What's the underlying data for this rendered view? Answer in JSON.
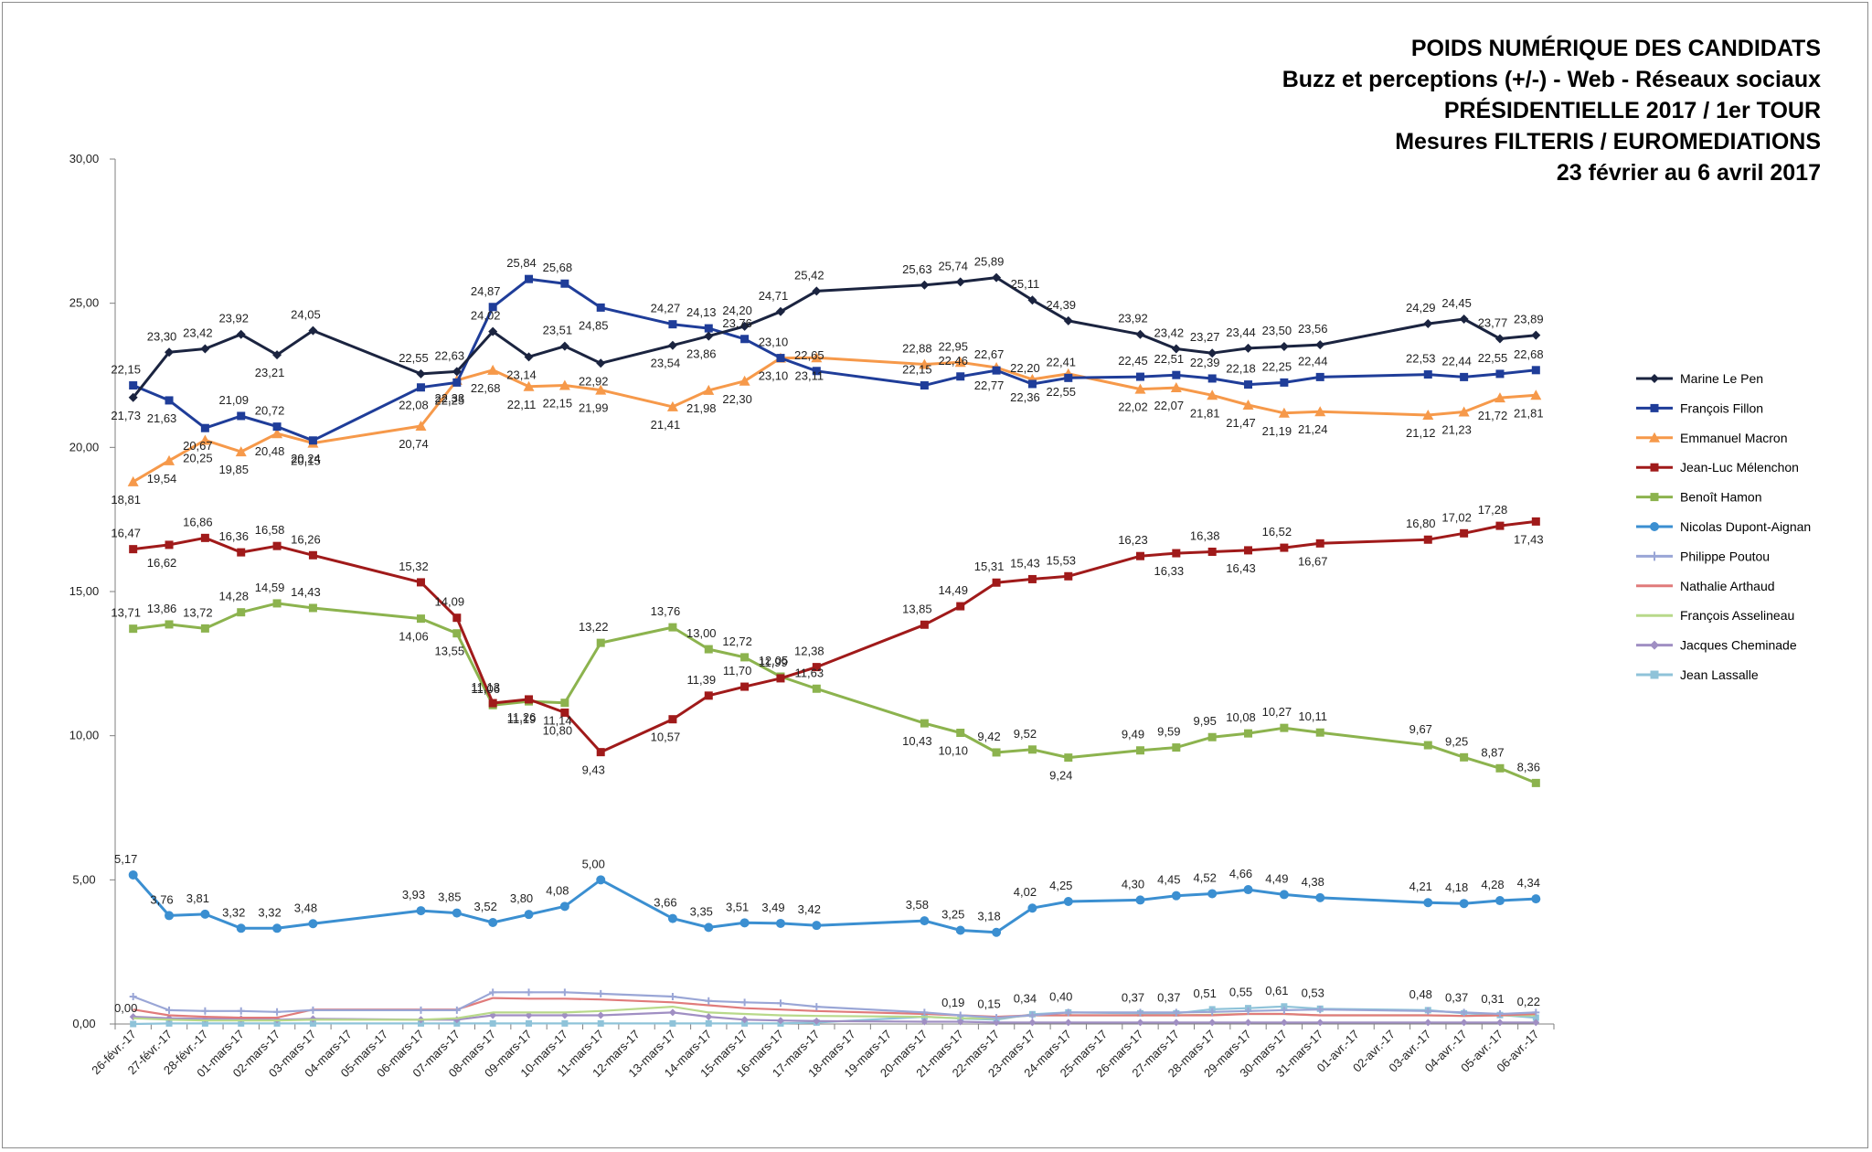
{
  "titles": [
    "POIDS NUMÉRIQUE DES CANDIDATS",
    "Buzz et perceptions (+/-) - Web - Réseaux sociaux",
    "PRÉSIDENTIELLE 2017 / 1er TOUR",
    "Mesures FILTERIS / EUROMEDIATIONS",
    "23 février au 6 avril 2017"
  ],
  "chart_data": {
    "type": "line",
    "title": "POIDS NUMÉRIQUE DES CANDIDATS",
    "xlabel": "",
    "ylabel": "",
    "ylim": [
      0,
      30
    ],
    "yticks": [
      "0,00",
      "5,00",
      "10,00",
      "15,00",
      "20,00",
      "25,00",
      "30,00"
    ],
    "legend_position": "right",
    "categories": [
      "26-févr.-17",
      "27-févr.-17",
      "28-févr.-17",
      "01-mars-17",
      "02-mars-17",
      "03-mars-17",
      "04-mars-17",
      "05-mars-17",
      "06-mars-17",
      "07-mars-17",
      "08-mars-17",
      "09-mars-17",
      "10-mars-17",
      "11-mars-17",
      "12-mars-17",
      "13-mars-17",
      "14-mars-17",
      "15-mars-17",
      "16-mars-17",
      "17-mars-17",
      "18-mars-17",
      "19-mars-17",
      "20-mars-17",
      "21-mars-17",
      "22-mars-17",
      "23-mars-17",
      "24-mars-17",
      "25-mars-17",
      "26-mars-17",
      "27-mars-17",
      "28-mars-17",
      "29-mars-17",
      "30-mars-17",
      "31-mars-17",
      "01-avr.-17",
      "02-avr.-17",
      "03-avr.-17",
      "04-avr.-17",
      "05-avr.-17",
      "06-avr.-17"
    ],
    "series": [
      {
        "name": "Marine Le Pen",
        "color": "#1b2440",
        "marker": "diamond",
        "values": [
          21.73,
          23.3,
          23.42,
          23.92,
          23.21,
          24.05,
          null,
          null,
          22.55,
          22.63,
          24.02,
          23.14,
          23.51,
          22.92,
          null,
          23.54,
          23.86,
          24.2,
          24.71,
          25.42,
          null,
          null,
          25.63,
          25.74,
          25.89,
          25.11,
          24.39,
          null,
          23.92,
          23.42,
          23.27,
          23.44,
          23.5,
          23.56,
          null,
          null,
          24.29,
          24.45,
          23.77,
          23.89
        ],
        "labels": [
          "21,73",
          "23,30",
          "23,42",
          "23,92",
          "23,21",
          "24,05",
          "",
          "",
          "22,55",
          "22,63",
          "24,02",
          "23,14",
          "23,51",
          "22,92",
          "",
          "23,54",
          "23,86",
          "24,20",
          "24,71",
          "25,42",
          "",
          "",
          "25,63",
          "25,74",
          "25,89",
          "25,11",
          "24,39",
          "",
          "23,92",
          "23,42",
          "23,27",
          "23,44",
          "23,50",
          "23,56",
          "",
          "",
          "24,29",
          "24,45",
          "23,77",
          "23,89"
        ]
      },
      {
        "name": "François Fillon",
        "color": "#1f3d99",
        "marker": "square",
        "values": [
          22.15,
          21.63,
          20.67,
          21.09,
          20.72,
          20.24,
          null,
          null,
          22.08,
          22.25,
          24.87,
          25.84,
          25.68,
          24.85,
          null,
          24.27,
          24.13,
          23.76,
          23.1,
          22.65,
          null,
          null,
          22.15,
          22.46,
          22.67,
          22.2,
          22.41,
          null,
          22.45,
          22.51,
          22.39,
          22.18,
          22.25,
          22.44,
          null,
          null,
          22.53,
          22.44,
          22.55,
          22.68
        ],
        "labels": [
          "22,15",
          "21,63",
          "20,67",
          "21,09",
          "20,72",
          "20,24",
          "",
          "",
          "22,08",
          "22,25",
          "24,87",
          "25,84",
          "25,68",
          "24,85",
          "",
          "24,27",
          "24,13",
          "23,76",
          "23,10",
          "22,65",
          "",
          "",
          "22,15",
          "22,46",
          "22,67",
          "22,20",
          "22,41",
          "",
          "22,45",
          "22,51",
          "22,39",
          "22,18",
          "22,25",
          "22,44",
          "",
          "",
          "22,53",
          "22,44",
          "22,55",
          "22,68"
        ]
      },
      {
        "name": "Emmanuel Macron",
        "color": "#f6994a",
        "marker": "triangle",
        "values": [
          18.81,
          19.54,
          20.25,
          19.85,
          20.48,
          20.15,
          null,
          null,
          20.74,
          22.33,
          22.68,
          22.11,
          22.15,
          21.99,
          null,
          21.41,
          21.98,
          22.3,
          23.1,
          23.11,
          null,
          null,
          22.88,
          22.95,
          22.77,
          22.36,
          22.55,
          null,
          22.02,
          22.07,
          21.81,
          21.47,
          21.19,
          21.24,
          null,
          null,
          21.12,
          21.23,
          21.72,
          21.81
        ],
        "labels": [
          "18,81",
          "19,54",
          "20,25",
          "19,85",
          "20,48",
          "20,15",
          "",
          "",
          "20,74",
          "22,33",
          "22,68",
          "22,11",
          "22,15",
          "21,99",
          "",
          "21,41",
          "21,98",
          "22,30",
          "23,10",
          "23,11",
          "",
          "",
          "22,88",
          "22,95",
          "22,77",
          "22,36",
          "22,55",
          "",
          "22,02",
          "22,07",
          "21,81",
          "21,47",
          "21,19",
          "21,24",
          "",
          "",
          "21,12",
          "21,23",
          "21,72",
          "21,81"
        ]
      },
      {
        "name": "Jean-Luc Mélenchon",
        "color": "#a01a1a",
        "marker": "square",
        "values": [
          16.47,
          16.62,
          16.86,
          16.36,
          16.58,
          16.26,
          null,
          null,
          15.32,
          14.09,
          11.13,
          11.26,
          10.8,
          9.43,
          null,
          10.57,
          11.39,
          11.7,
          11.99,
          12.38,
          null,
          null,
          13.85,
          14.49,
          15.31,
          15.43,
          15.53,
          null,
          16.23,
          16.33,
          16.38,
          16.43,
          16.52,
          16.67,
          null,
          null,
          16.8,
          17.02,
          17.28,
          17.43
        ],
        "labels": [
          "16,47",
          "16,62",
          "16,86",
          "16,36",
          "16,58",
          "16,26",
          "",
          "",
          "15,32",
          "14,09",
          "11,13",
          "11,26",
          "10,80",
          "9,43",
          "",
          "10,57",
          "11,39",
          "11,70",
          "11,99",
          "12,38",
          "",
          "",
          "13,85",
          "14,49",
          "15,31",
          "15,43",
          "15,53",
          "",
          "16,23",
          "16,33",
          "16,38",
          "16,43",
          "16,52",
          "16,67",
          "",
          "",
          "16,80",
          "17,02",
          "17,28",
          "17,43"
        ]
      },
      {
        "name": "Benoît Hamon",
        "color": "#8cb34e",
        "marker": "square",
        "values": [
          13.71,
          13.86,
          13.72,
          14.28,
          14.59,
          14.43,
          null,
          null,
          14.06,
          13.55,
          11.06,
          11.19,
          11.14,
          13.22,
          null,
          13.76,
          13.0,
          12.72,
          12.05,
          11.63,
          null,
          null,
          10.43,
          10.1,
          9.42,
          9.52,
          9.24,
          null,
          9.49,
          9.59,
          9.95,
          10.08,
          10.27,
          10.11,
          null,
          null,
          9.67,
          9.25,
          8.87,
          8.36
        ],
        "labels": [
          "13,71",
          "13,86",
          "13,72",
          "14,28",
          "14,59",
          "14,43",
          "",
          "",
          "14,06",
          "13,55",
          "11,06",
          "11,19",
          "11,14",
          "13,22",
          "",
          "13,76",
          "13,00",
          "12,72",
          "12,05",
          "11,63",
          "",
          "",
          "10,43",
          "10,10",
          "9,42",
          "9,52",
          "9,24",
          "",
          "9,49",
          "9,59",
          "9,95",
          "10,08",
          "10,27",
          "10,11",
          "",
          "",
          "9,67",
          "9,25",
          "8,87",
          "8,36"
        ]
      },
      {
        "name": "Nicolas Dupont-Aignan",
        "color": "#3b8fd1",
        "marker": "circle",
        "values": [
          5.17,
          3.76,
          3.81,
          3.32,
          3.32,
          3.48,
          null,
          null,
          3.93,
          3.85,
          3.52,
          3.8,
          4.08,
          5.0,
          null,
          3.66,
          3.35,
          3.51,
          3.49,
          3.42,
          null,
          null,
          3.58,
          3.25,
          3.18,
          4.02,
          4.25,
          null,
          4.3,
          4.45,
          4.52,
          4.66,
          4.49,
          4.38,
          null,
          null,
          4.21,
          4.18,
          4.28,
          4.34
        ],
        "labels": [
          "5,17",
          "3,76",
          "3,81",
          "3,32",
          "3,32",
          "3,48",
          "",
          "",
          "3,93",
          "3,85",
          "3,52",
          "3,80",
          "4,08",
          "5,00",
          "",
          "3,66",
          "3,35",
          "3,51",
          "3,49",
          "3,42",
          "",
          "",
          "3,58",
          "3,25",
          "3,18",
          "4,02",
          "4,25",
          "",
          "4,30",
          "4,45",
          "4,52",
          "4,66",
          "4,49",
          "4,38",
          "",
          "",
          "4,21",
          "4,18",
          "4,28",
          "4,34"
        ]
      },
      {
        "name": "Philippe Poutou",
        "color": "#9aa6d6",
        "marker": "cross",
        "values": [
          0.95,
          0.48,
          0.45,
          0.45,
          0.42,
          0.48,
          null,
          null,
          0.48,
          0.48,
          1.1,
          1.1,
          1.1,
          1.05,
          null,
          0.95,
          0.8,
          0.75,
          0.72,
          0.6,
          null,
          null,
          0.4,
          0.3,
          0.22,
          0.3,
          0.4,
          null,
          0.4,
          0.4,
          0.42,
          0.45,
          0.48,
          0.5,
          null,
          null,
          0.45,
          0.4,
          0.35,
          0.4
        ],
        "labels": []
      },
      {
        "name": "Nathalie Arthaud",
        "color": "#e07b7b",
        "marker": "none",
        "values": [
          0.5,
          0.3,
          0.25,
          0.22,
          0.22,
          0.5,
          null,
          null,
          0.5,
          0.5,
          0.9,
          0.88,
          0.88,
          0.85,
          null,
          0.75,
          0.65,
          0.55,
          0.5,
          0.45,
          null,
          null,
          0.35,
          0.3,
          0.25,
          0.3,
          0.3,
          null,
          0.3,
          0.3,
          0.3,
          0.35,
          0.35,
          0.3,
          null,
          null,
          0.3,
          0.28,
          0.3,
          0.35
        ],
        "labels": []
      },
      {
        "name": "François Asselineau",
        "color": "#b8d98a",
        "marker": "none",
        "values": [
          0.2,
          0.15,
          0.12,
          0.12,
          0.12,
          0.15,
          null,
          null,
          0.15,
          0.2,
          0.4,
          0.4,
          0.4,
          0.45,
          null,
          0.6,
          0.4,
          0.35,
          0.3,
          0.28,
          null,
          null,
          0.25,
          0.2,
          0.2,
          0.3,
          0.3,
          null,
          0.3,
          0.3,
          0.32,
          0.35,
          0.35,
          0.3,
          null,
          null,
          0.3,
          0.28,
          0.3,
          0.3
        ],
        "labels": []
      },
      {
        "name": "Jacques Cheminade",
        "color": "#a08fc3",
        "marker": "diamond",
        "values": [
          0.25,
          0.2,
          0.18,
          0.18,
          0.15,
          0.18,
          null,
          null,
          0.15,
          0.15,
          0.3,
          0.3,
          0.3,
          0.3,
          null,
          0.4,
          0.25,
          0.15,
          0.12,
          0.1,
          null,
          null,
          0.08,
          0.08,
          0.05,
          0.05,
          0.05,
          null,
          0.05,
          0.05,
          0.05,
          0.05,
          0.05,
          0.05,
          null,
          null,
          0.05,
          0.05,
          0.05,
          0.05
        ],
        "labels": []
      },
      {
        "name": "Jean Lassalle",
        "color": "#8fc3d9",
        "marker": "square",
        "values": [
          0.0,
          0.02,
          0.02,
          0.02,
          0.02,
          0.02,
          null,
          null,
          0.02,
          0.02,
          0.02,
          0.02,
          0.02,
          0.02,
          null,
          0.02,
          0.02,
          0.02,
          0.02,
          0.05,
          null,
          null,
          0.25,
          0.19,
          0.15,
          0.34,
          0.4,
          null,
          0.37,
          0.37,
          0.51,
          0.55,
          0.61,
          0.53,
          null,
          null,
          0.48,
          0.37,
          0.31,
          0.22
        ],
        "labels": [
          "0,00",
          "",
          "",
          "",
          "",
          "",
          "",
          "",
          "",
          "",
          "",
          "",
          "",
          "",
          "",
          "",
          "",
          "",
          "",
          "",
          "",
          "",
          "",
          "0,19",
          "0,15",
          "0,34",
          "0,40",
          "",
          "0,37",
          "0,37",
          "0,51",
          "0,55",
          "0,61",
          "0,53",
          "",
          "",
          "0,48",
          "0,37",
          "0,31",
          "0,22"
        ]
      }
    ]
  }
}
